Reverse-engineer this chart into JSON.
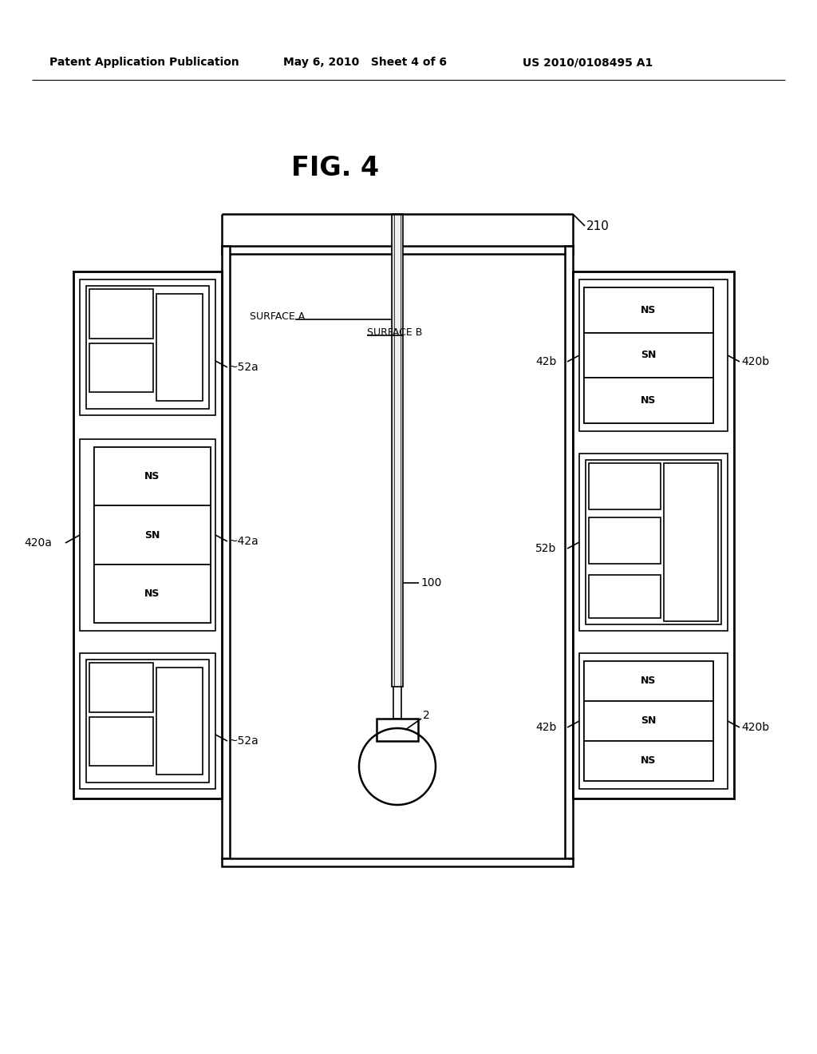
{
  "title": "FIG. 4",
  "header_left": "Patent Application Publication",
  "header_center": "May 6, 2010   Sheet 4 of 6",
  "header_right": "US 2010/0108495 A1",
  "bg_color": "#ffffff",
  "line_color": "#000000",
  "fig_width": 10.24,
  "fig_height": 13.2,
  "dpi": 100
}
